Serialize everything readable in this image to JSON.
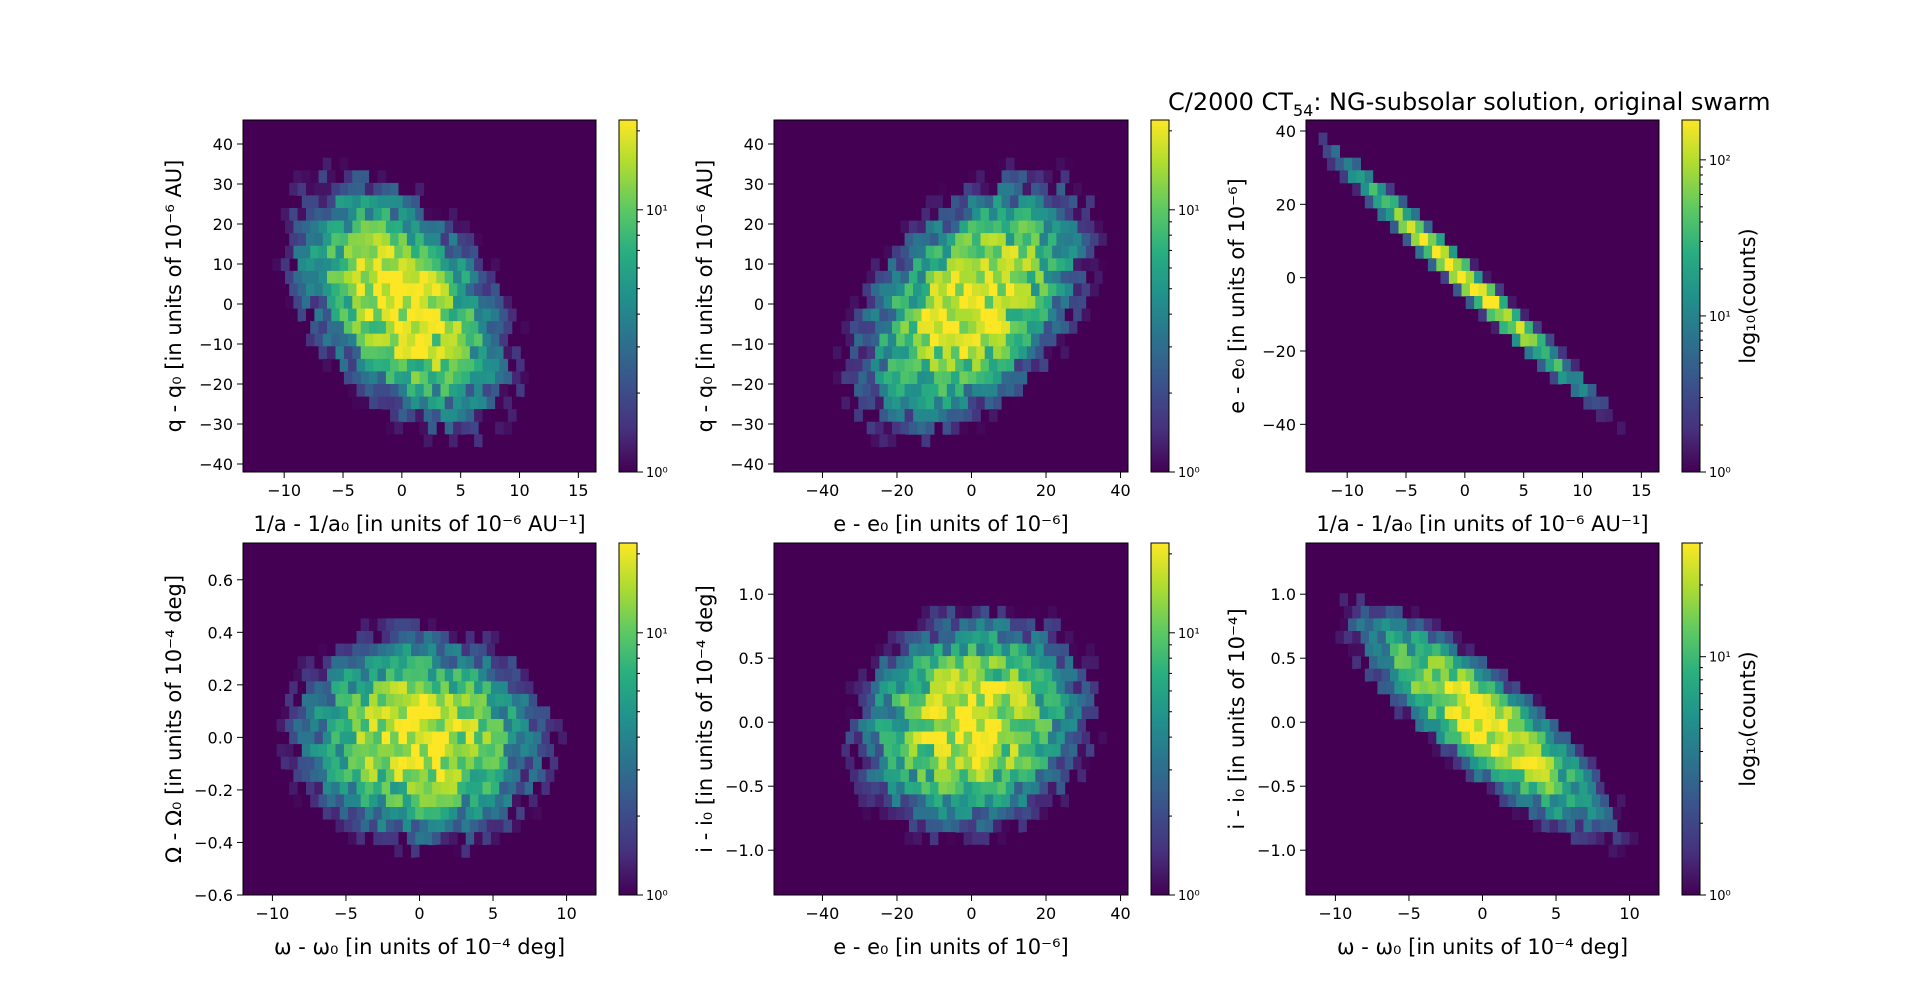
{
  "figure_title": "C/2000 CT54: NG-subsolar solution, original swarm",
  "title_parts": {
    "main": "C/2000 CT",
    "sub": "54",
    "rest": ": NG-subsolar solution, original swarm"
  },
  "colors": {
    "low": "#440154",
    "mid": "#21918c",
    "high": "#fde725",
    "background": "#440154"
  },
  "chart_data": [
    {
      "type": "heatmap",
      "panel": "row1-col1",
      "xlabel": "1/a - 1/a₀ [in units of 10⁻⁶ AU⁻¹]",
      "ylabel": "q - q₀ [in units of 10⁻⁶ AU]",
      "xlim": [
        -13.5,
        16.5
      ],
      "ylim": [
        -42,
        46
      ],
      "xticks": [
        -10,
        -5,
        0,
        5,
        10,
        15
      ],
      "xticklabels": [
        "−10",
        "−5",
        "0",
        "5",
        "10",
        "15"
      ],
      "yticks": [
        -40,
        -30,
        -20,
        -10,
        0,
        10,
        20,
        30,
        40
      ],
      "yticklabels": [
        "−40",
        "−30",
        "−20",
        "−10",
        "0",
        "10",
        "20",
        "30",
        "40"
      ],
      "colorbar": {
        "scale": "log",
        "range": [
          1,
          22
        ],
        "ticklabels": [
          "10⁰",
          "10¹"
        ],
        "label": ""
      },
      "distribution": {
        "center": [
          0,
          0
        ],
        "sx": 4.2,
        "sy": 14,
        "rho": -0.45,
        "peak": 22
      }
    },
    {
      "type": "heatmap",
      "panel": "row1-col2",
      "xlabel": "e - e₀ [in units of 10⁻⁶]",
      "ylabel": "q - q₀ [in units of 10⁻⁶ AU]",
      "xlim": [
        -53,
        42
      ],
      "ylim": [
        -42,
        46
      ],
      "xticks": [
        -40,
        -20,
        0,
        20,
        40
      ],
      "xticklabels": [
        "−40",
        "−20",
        "0",
        "20",
        "40"
      ],
      "yticks": [
        -40,
        -30,
        -20,
        -10,
        0,
        10,
        20,
        30,
        40
      ],
      "yticklabels": [
        "−40",
        "−30",
        "−20",
        "−10",
        "0",
        "10",
        "20",
        "30",
        "40"
      ],
      "colorbar": {
        "scale": "log",
        "range": [
          1,
          22
        ],
        "ticklabels": [
          "10⁰",
          "10¹"
        ],
        "label": ""
      },
      "distribution": {
        "center": [
          0,
          0
        ],
        "sx": 14,
        "sy": 14,
        "rho": 0.45,
        "peak": 22
      }
    },
    {
      "type": "heatmap",
      "panel": "row1-col3",
      "xlabel": "1/a - 1/a₀ [in units of 10⁻⁶ AU⁻¹]",
      "ylabel": "e - e₀ [in units of 10⁻⁶]",
      "xlim": [
        -13.5,
        16.5
      ],
      "ylim": [
        -53,
        43
      ],
      "xticks": [
        -10,
        -5,
        0,
        5,
        10,
        15
      ],
      "xticklabels": [
        "−10",
        "−5",
        "0",
        "5",
        "10",
        "15"
      ],
      "yticks": [
        -40,
        -20,
        0,
        20,
        40
      ],
      "yticklabels": [
        "−40",
        "−20",
        "0",
        "20",
        "40"
      ],
      "colorbar": {
        "scale": "log",
        "range": [
          1,
          180
        ],
        "ticklabels": [
          "10⁰",
          "10¹",
          "10²"
        ],
        "label": "log₁₀(counts)"
      },
      "distribution": {
        "line_slope": -3.0,
        "x_range": [
          -12,
          15
        ],
        "sx": 4.2,
        "peak": 180
      }
    },
    {
      "type": "heatmap",
      "panel": "row2-col1",
      "xlabel": "ω - ω₀ [in units of 10⁻⁴ deg]",
      "ylabel": "Ω - Ω₀ [in units of 10⁻⁴ deg]",
      "xlim": [
        -12,
        12
      ],
      "ylim": [
        -0.6,
        0.74
      ],
      "xticks": [
        -10,
        -5,
        0,
        5,
        10
      ],
      "xticklabels": [
        "−10",
        "−5",
        "0",
        "5",
        "10"
      ],
      "yticks": [
        -0.6,
        -0.4,
        -0.2,
        0.0,
        0.2,
        0.4,
        0.6
      ],
      "yticklabels": [
        "−0.6",
        "−0.4",
        "−0.2",
        "0.0",
        "0.2",
        "0.4",
        "0.6"
      ],
      "colorbar": {
        "scale": "log",
        "range": [
          1,
          22
        ],
        "ticklabels": [
          "10⁰",
          "10¹"
        ],
        "label": ""
      },
      "distribution": {
        "center": [
          0,
          0
        ],
        "sx": 3.8,
        "sy": 0.18,
        "rho": -0.05,
        "peak": 22
      }
    },
    {
      "type": "heatmap",
      "panel": "row2-col2",
      "xlabel": "e - e₀ [in units of 10⁻⁶]",
      "ylabel": "i - i₀ [in units of 10⁻⁴ deg]",
      "xlim": [
        -53,
        42
      ],
      "ylim": [
        -1.35,
        1.4
      ],
      "xticks": [
        -40,
        -20,
        0,
        20,
        40
      ],
      "xticklabels": [
        "−40",
        "−20",
        "0",
        "20",
        "40"
      ],
      "yticks": [
        -1.0,
        -0.5,
        0.0,
        0.5,
        1.0
      ],
      "yticklabels": [
        "−1.0",
        "−0.5",
        "0.0",
        "0.5",
        "1.0"
      ],
      "colorbar": {
        "scale": "log",
        "range": [
          1,
          22
        ],
        "ticklabels": [
          "10⁰",
          "10¹"
        ],
        "label": ""
      },
      "distribution": {
        "center": [
          0,
          0
        ],
        "sx": 14,
        "sy": 0.38,
        "rho": 0.1,
        "peak": 22
      }
    },
    {
      "type": "heatmap",
      "panel": "row2-col3",
      "xlabel": "ω - ω₀ [in units of 10⁻⁴ deg]",
      "ylabel": "i - i₀ [in units of 10⁻⁴]",
      "xlim": [
        -12,
        12
      ],
      "ylim": [
        -1.35,
        1.4
      ],
      "xticks": [
        -10,
        -5,
        0,
        5,
        10
      ],
      "xticklabels": [
        "−10",
        "−5",
        "0",
        "5",
        "10"
      ],
      "yticks": [
        -1.0,
        -0.5,
        0.0,
        0.5,
        1.0
      ],
      "yticklabels": [
        "−1.0",
        "−0.5",
        "0.0",
        "0.5",
        "1.0"
      ],
      "colorbar": {
        "scale": "log",
        "range": [
          1,
          30
        ],
        "ticklabels": [
          "10⁰",
          "10¹"
        ],
        "label": "log₁₀(counts)"
      },
      "distribution": {
        "center": [
          0,
          0
        ],
        "sx": 3.8,
        "sy": 0.38,
        "rho": -0.85,
        "peak": 30
      }
    }
  ]
}
